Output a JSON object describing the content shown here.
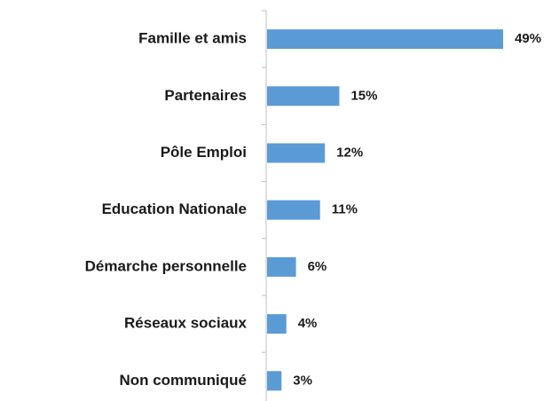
{
  "chart_data": {
    "type": "bar",
    "orientation": "horizontal",
    "categories": [
      "Famille et amis",
      "Partenaires",
      "Pôle Emploi",
      "Education Nationale",
      "Démarche personnelle",
      "Réseaux sociaux",
      "Non communiqué"
    ],
    "values": [
      49,
      15,
      12,
      11,
      6,
      4,
      3
    ],
    "value_labels": [
      "49%",
      "15%",
      "12%",
      "11%",
      "6%",
      "4%",
      "3%"
    ],
    "color": "#5b9bd5"
  }
}
